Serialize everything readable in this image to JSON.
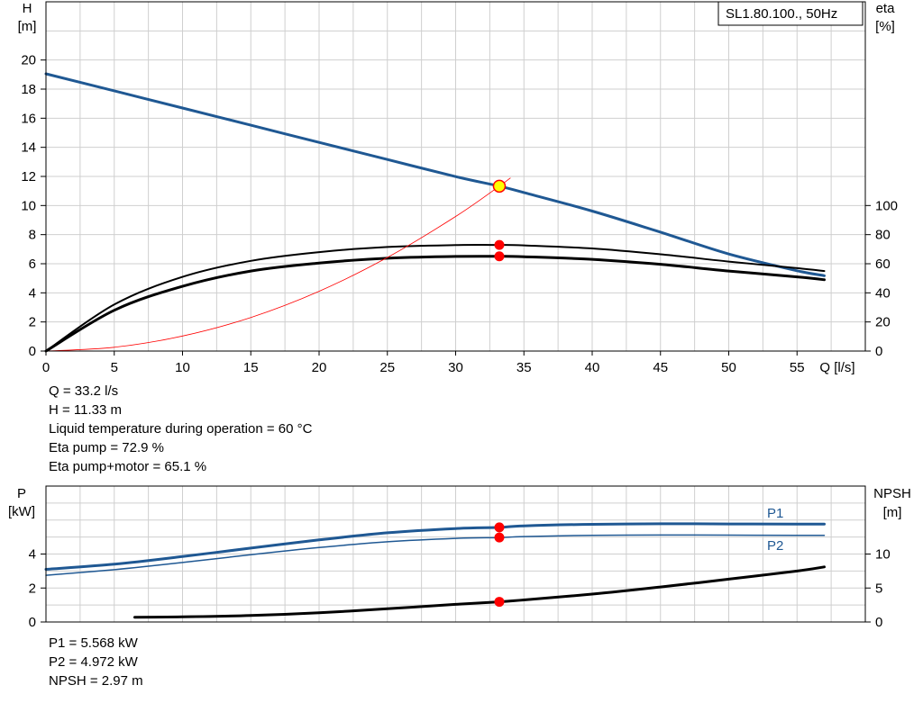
{
  "chart_data": [
    {
      "type": "line",
      "title": "SL1.80.100., 50Hz",
      "ylabel": "H",
      "ylabel_unit": "[m]",
      "ylabel_right": "eta",
      "ylabel_right_unit": "[%]",
      "xlabel": "Q [l/s]",
      "xlim": [
        0,
        60
      ],
      "xticks": [
        0,
        5,
        10,
        15,
        20,
        25,
        30,
        35,
        40,
        45,
        50,
        55
      ],
      "ylim": [
        0,
        24
      ],
      "yticks": [
        0,
        2,
        4,
        6,
        8,
        10,
        12,
        14,
        16,
        18,
        20
      ],
      "ylim_right": [
        0,
        240
      ],
      "yticks_right": [
        0,
        20,
        40,
        60,
        80,
        100
      ],
      "grid": true,
      "legend": "top-right",
      "colors": {
        "head": "#1f5893",
        "eta": "#000000",
        "system": "#ff0000",
        "marker": "#ff0000",
        "op_point": "#ffff00"
      },
      "series": [
        {
          "name": "",
          "axis": "left",
          "color": "#1f5893",
          "width": 3,
          "x": [
            0,
            5,
            10,
            15,
            20,
            25,
            30,
            33.2,
            35,
            40,
            45,
            50,
            55,
            57
          ],
          "y": [
            19.05,
            17.88,
            16.7,
            15.52,
            14.34,
            13.16,
            11.99,
            11.33,
            10.89,
            9.62,
            8.17,
            6.67,
            5.52,
            5.18
          ]
        },
        {
          "name": "",
          "axis": "right",
          "color": "#000000",
          "width": 2,
          "x": [
            0,
            5,
            10,
            15,
            20,
            25,
            30,
            33.2,
            35,
            40,
            45,
            50,
            55,
            57
          ],
          "y": [
            0,
            32,
            51,
            62,
            68,
            71.5,
            72.8,
            72.9,
            72.6,
            70.5,
            66.5,
            61.5,
            57,
            55
          ]
        },
        {
          "name": "",
          "axis": "right",
          "color": "#000000",
          "width": 3,
          "x": [
            0,
            5,
            10,
            15,
            20,
            25,
            30,
            33.2,
            35,
            40,
            45,
            50,
            55,
            57
          ],
          "y": [
            0,
            28,
            44.5,
            55,
            60.5,
            63.8,
            65,
            65.1,
            64.8,
            63,
            59.6,
            55,
            51,
            49
          ]
        },
        {
          "name": "",
          "axis": "left",
          "color": "#ff0000",
          "width": 0.8,
          "x": [
            0,
            5,
            10,
            15,
            20,
            25,
            30,
            33.2,
            34
          ],
          "y": [
            0,
            0.26,
            1.03,
            2.31,
            4.11,
            6.43,
            9.25,
            11.33,
            11.89
          ]
        }
      ],
      "markers": [
        {
          "axis": "left",
          "x": 33.2,
          "y": 11.33,
          "kind": "operating-point"
        },
        {
          "axis": "right",
          "x": 33.2,
          "y": 72.9,
          "kind": "dot"
        },
        {
          "axis": "right",
          "x": 33.2,
          "y": 65.1,
          "kind": "dot"
        }
      ]
    },
    {
      "type": "line",
      "ylabel": "P",
      "ylabel_unit": "[kW]",
      "ylabel_right": "NPSH",
      "ylabel_right_unit": "[m]",
      "xlim": [
        0,
        60
      ],
      "ylim": [
        0,
        8
      ],
      "yticks": [
        0,
        2,
        4
      ],
      "ylim_right": [
        0,
        20
      ],
      "yticks_right": [
        0,
        5,
        10
      ],
      "grid": true,
      "series": [
        {
          "name": "P1",
          "axis": "left",
          "color": "#1f5893",
          "width": 3,
          "x": [
            0,
            5,
            10,
            15,
            20,
            25,
            30,
            33.2,
            35,
            40,
            45,
            50,
            55,
            57
          ],
          "y": [
            3.1,
            3.4,
            3.85,
            4.35,
            4.83,
            5.25,
            5.5,
            5.568,
            5.66,
            5.75,
            5.78,
            5.77,
            5.76,
            5.76
          ]
        },
        {
          "name": "P2",
          "axis": "left",
          "color": "#1f5893",
          "width": 1.5,
          "x": [
            0,
            5,
            10,
            15,
            20,
            25,
            30,
            33.2,
            35,
            40,
            45,
            50,
            55,
            57
          ],
          "y": [
            2.75,
            3.08,
            3.5,
            3.96,
            4.38,
            4.72,
            4.92,
            4.972,
            5.03,
            5.1,
            5.12,
            5.11,
            5.1,
            5.1
          ]
        },
        {
          "name": "",
          "axis": "right",
          "color": "#000000",
          "width": 3,
          "x": [
            6.5,
            10,
            15,
            20,
            25,
            30,
            33.2,
            35,
            40,
            45,
            50,
            55,
            57
          ],
          "y": [
            0.7,
            0.75,
            0.95,
            1.35,
            1.95,
            2.6,
            2.97,
            3.25,
            4.1,
            5.15,
            6.3,
            7.5,
            8.1
          ]
        }
      ],
      "markers": [
        {
          "axis": "left",
          "x": 33.2,
          "y": 5.568,
          "kind": "dot"
        },
        {
          "axis": "left",
          "x": 33.2,
          "y": 4.972,
          "kind": "dot"
        },
        {
          "axis": "right",
          "x": 33.2,
          "y": 2.97,
          "kind": "dot"
        }
      ]
    }
  ],
  "info_top": [
    "Q = 33.2 l/s",
    "H = 11.33 m",
    "Liquid temperature during operation = 60 °C",
    "Eta pump = 72.9 %",
    "Eta pump+motor = 65.1 %"
  ],
  "info_bottom": [
    "P1 = 5.568 kW",
    "P2 = 4.972 kW",
    "NPSH = 2.97 m"
  ]
}
